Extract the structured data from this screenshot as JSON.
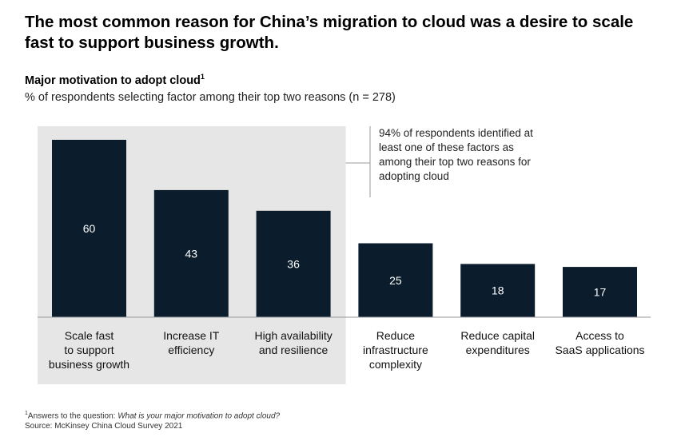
{
  "headline": "The most common reason for China’s migration to cloud was a desire to scale fast to support business growth.",
  "chart_title": "Major motivation to adopt cloud",
  "chart_title_footnote_marker": "1",
  "unit_note": "% of respondents selecting factor among their top two reasons (n = 278)",
  "callout": "94% of respondents identified at least one of these factors as among their top two reasons for adopting cloud",
  "footnote": {
    "marker": "1",
    "prefix": "Answers to the question: ",
    "question": "What is your major motivation to adopt cloud?",
    "source": "Source: McKinsey China Cloud Survey 2021"
  },
  "colors": {
    "bar": "#0b1c2c",
    "bar_label": "#ffffff",
    "highlight_panel": "#e6e6e6",
    "baseline": "#9a9a9a"
  },
  "chart_data": {
    "type": "bar",
    "categories": [
      [
        "Scale fast",
        "to support",
        "business growth"
      ],
      [
        "Increase IT",
        "efficiency"
      ],
      [
        "High availability",
        "and resilience"
      ],
      [
        "Reduce",
        "infrastructure",
        "complexity"
      ],
      [
        "Reduce capital",
        "expenditures"
      ],
      [
        "Access to",
        "SaaS applications"
      ]
    ],
    "values": [
      60,
      43,
      36,
      25,
      18,
      17
    ],
    "highlighted_categories": 3,
    "ylim": [
      0,
      60
    ],
    "grid": false,
    "xlabel": "",
    "ylabel": ""
  }
}
